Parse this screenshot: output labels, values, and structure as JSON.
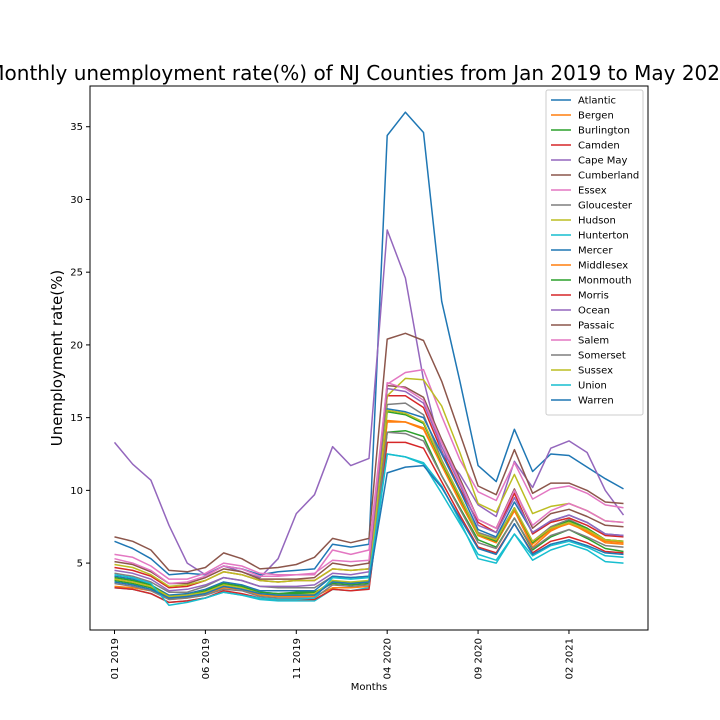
{
  "chart_data": {
    "type": "line",
    "title": "Monthly unemployment rate(%) of NJ Counties from Jan 2019 to May 2021",
    "xlabel": "Months",
    "ylabel": "Unemployment rate(%)",
    "x": [
      "01 2019",
      "02 2019",
      "03 2019",
      "04 2019",
      "05 2019",
      "06 2019",
      "07 2019",
      "08 2019",
      "09 2019",
      "10 2019",
      "11 2019",
      "12 2019",
      "01 2020",
      "02 2020",
      "03 2020",
      "04 2020",
      "05 2020",
      "06 2020",
      "07 2020",
      "08 2020",
      "09 2020",
      "10 2020",
      "11 2020",
      "12 2020",
      "01 2021",
      "02 2021",
      "03 2021",
      "04 2021",
      "05 2021"
    ],
    "xticks": [
      "01 2019",
      "06 2019",
      "11 2019",
      "04 2020",
      "09 2020",
      "02 2021"
    ],
    "yticks": [
      5,
      10,
      15,
      20,
      25,
      30,
      35
    ],
    "ylim": [
      0.4,
      37.8
    ],
    "legend_position": "top-right",
    "grid": false,
    "series": [
      {
        "name": "Atlantic",
        "color": "#1f77b4",
        "values": [
          6.5,
          6.0,
          5.3,
          4.2,
          4.3,
          4.2,
          4.8,
          4.6,
          4.2,
          4.4,
          4.5,
          4.6,
          6.3,
          6.1,
          6.3,
          34.4,
          36.0,
          34.6,
          23.0,
          17.5,
          11.7,
          10.6,
          14.2,
          11.3,
          12.5,
          12.4,
          11.6,
          10.8,
          10.1
        ]
      },
      {
        "name": "Bergen",
        "color": "#ff7f0e",
        "values": [
          3.4,
          3.3,
          3.1,
          2.5,
          2.6,
          2.8,
          3.3,
          3.2,
          2.8,
          2.7,
          2.7,
          2.7,
          3.3,
          3.3,
          3.4,
          14.7,
          14.7,
          14.3,
          11.7,
          9.2,
          6.9,
          6.4,
          8.6,
          6.1,
          7.2,
          7.8,
          7.1,
          6.4,
          6.3
        ]
      },
      {
        "name": "Burlington",
        "color": "#2ca02c",
        "values": [
          3.8,
          3.6,
          3.3,
          2.6,
          2.7,
          3.0,
          3.6,
          3.4,
          3.0,
          2.9,
          3.0,
          3.0,
          3.6,
          3.5,
          3.6,
          14.0,
          14.1,
          13.7,
          11.0,
          8.8,
          6.6,
          6.1,
          8.1,
          5.9,
          6.8,
          7.3,
          6.7,
          6.0,
          5.8
        ]
      },
      {
        "name": "Camden",
        "color": "#d62728",
        "values": [
          4.7,
          4.5,
          4.1,
          3.3,
          3.4,
          3.8,
          4.4,
          4.2,
          3.8,
          3.7,
          3.8,
          3.8,
          4.6,
          4.5,
          4.6,
          16.5,
          16.5,
          15.7,
          12.7,
          10.1,
          7.8,
          7.1,
          9.8,
          7.0,
          7.8,
          8.1,
          7.6,
          6.9,
          6.8
        ]
      },
      {
        "name": "Cape May",
        "color": "#9467bd",
        "values": [
          13.3,
          11.8,
          10.7,
          7.6,
          5.0,
          4.2,
          4.8,
          4.4,
          4.0,
          5.3,
          8.4,
          9.7,
          13.0,
          11.7,
          12.2,
          27.9,
          24.6,
          17.6,
          12.6,
          11.1,
          9.0,
          8.2,
          12.0,
          10.2,
          12.9,
          13.4,
          12.6,
          10.0,
          8.3
        ]
      },
      {
        "name": "Cumberland",
        "color": "#8c564b",
        "values": [
          6.8,
          6.5,
          5.9,
          4.5,
          4.4,
          4.7,
          5.7,
          5.3,
          4.6,
          4.7,
          4.9,
          5.4,
          6.7,
          6.4,
          6.7,
          20.4,
          20.8,
          20.3,
          17.5,
          13.9,
          10.3,
          9.7,
          12.8,
          9.8,
          10.5,
          10.5,
          10.0,
          9.2,
          9.1
        ]
      },
      {
        "name": "Essex",
        "color": "#e377c2",
        "values": [
          5.6,
          5.4,
          4.8,
          3.9,
          3.9,
          4.3,
          5.0,
          4.8,
          4.3,
          4.2,
          4.2,
          4.2,
          5.9,
          5.6,
          5.9,
          17.3,
          18.1,
          18.3,
          15.1,
          12.1,
          9.9,
          9.3,
          11.9,
          9.4,
          10.1,
          10.3,
          9.8,
          9.0,
          8.8
        ]
      },
      {
        "name": "Gloucester",
        "color": "#7f7f7f",
        "values": [
          4.3,
          4.1,
          3.7,
          3.0,
          3.0,
          3.4,
          4.0,
          3.8,
          3.4,
          3.3,
          3.3,
          3.3,
          4.1,
          4.0,
          4.1,
          15.9,
          16.0,
          15.2,
          12.1,
          9.6,
          7.1,
          6.7,
          8.8,
          6.5,
          7.5,
          8.0,
          7.4,
          6.6,
          6.5
        ]
      },
      {
        "name": "Hudson",
        "color": "#bcbd22",
        "values": [
          4.9,
          4.7,
          4.2,
          3.4,
          3.5,
          3.8,
          4.4,
          4.2,
          3.8,
          3.7,
          3.8,
          3.8,
          4.6,
          4.5,
          4.6,
          16.5,
          17.7,
          17.6,
          15.8,
          12.6,
          9.1,
          8.5,
          11.1,
          8.4,
          8.9,
          9.1,
          8.6,
          7.9,
          7.8
        ]
      },
      {
        "name": "Hunterton",
        "color": "#17becf",
        "values": [
          3.3,
          3.2,
          2.9,
          2.3,
          2.4,
          2.6,
          3.0,
          2.8,
          2.5,
          2.4,
          2.4,
          2.4,
          3.2,
          3.1,
          3.3,
          12.5,
          12.3,
          11.8,
          9.8,
          7.7,
          5.6,
          5.2,
          7.0,
          5.5,
          6.2,
          6.5,
          6.1,
          5.5,
          5.4
        ]
      },
      {
        "name": "Mercer",
        "color": "#1f77b4",
        "values": [
          4.1,
          3.9,
          3.5,
          2.8,
          2.9,
          3.2,
          3.7,
          3.5,
          3.1,
          3.1,
          3.1,
          3.1,
          4.1,
          4.0,
          4.1,
          15.6,
          15.4,
          15.0,
          12.5,
          10.0,
          7.3,
          6.8,
          9.2,
          7.1,
          7.9,
          8.3,
          7.8,
          7.0,
          6.9
        ]
      },
      {
        "name": "Middlesex",
        "color": "#ff7f0e",
        "values": [
          3.9,
          3.7,
          3.4,
          2.7,
          2.8,
          3.0,
          3.5,
          3.3,
          2.9,
          2.8,
          2.8,
          2.8,
          3.7,
          3.6,
          3.7,
          14.8,
          14.7,
          14.2,
          11.7,
          9.3,
          6.9,
          6.4,
          8.6,
          6.3,
          7.3,
          7.7,
          7.2,
          6.5,
          6.4
        ]
      },
      {
        "name": "Monmouth",
        "color": "#2ca02c",
        "values": [
          4.0,
          3.8,
          3.5,
          2.7,
          2.8,
          3.1,
          3.6,
          3.4,
          3.0,
          2.9,
          2.9,
          2.9,
          3.8,
          3.6,
          3.8,
          15.4,
          15.2,
          14.6,
          11.9,
          9.5,
          7.0,
          6.5,
          8.8,
          6.4,
          7.4,
          7.9,
          7.4,
          6.6,
          6.5
        ]
      },
      {
        "name": "Morris",
        "color": "#d62728",
        "values": [
          3.3,
          3.2,
          2.9,
          2.3,
          2.4,
          2.6,
          3.1,
          2.9,
          2.6,
          2.5,
          2.5,
          2.5,
          3.2,
          3.1,
          3.2,
          13.3,
          13.3,
          12.9,
          10.6,
          8.3,
          6.1,
          5.7,
          7.7,
          5.7,
          6.5,
          6.8,
          6.4,
          5.8,
          5.7
        ]
      },
      {
        "name": "Ocean",
        "color": "#9467bd",
        "values": [
          4.5,
          4.3,
          3.9,
          3.1,
          3.2,
          3.5,
          4.0,
          3.8,
          3.4,
          3.4,
          3.4,
          3.5,
          4.3,
          4.2,
          4.4,
          17.0,
          16.8,
          16.0,
          13.0,
          10.4,
          7.6,
          7.1,
          9.5,
          7.1,
          7.9,
          8.3,
          7.8,
          7.0,
          6.9
        ]
      },
      {
        "name": "Passaic",
        "color": "#8c564b",
        "values": [
          5.1,
          4.9,
          4.4,
          3.6,
          3.6,
          4.0,
          4.6,
          4.4,
          3.9,
          3.9,
          3.9,
          4.0,
          5.0,
          4.8,
          5.0,
          17.2,
          17.1,
          16.4,
          13.5,
          10.8,
          8.0,
          7.4,
          10.1,
          7.4,
          8.4,
          8.7,
          8.2,
          7.6,
          7.5
        ]
      },
      {
        "name": "Salem",
        "color": "#e377c2",
        "values": [
          5.3,
          5.0,
          4.5,
          3.6,
          3.7,
          4.1,
          4.8,
          4.6,
          4.1,
          4.1,
          4.2,
          4.3,
          5.2,
          5.1,
          5.2,
          17.4,
          17.0,
          16.2,
          13.3,
          10.6,
          8.0,
          7.4,
          10.0,
          7.6,
          8.6,
          9.1,
          8.6,
          7.9,
          7.8
        ]
      },
      {
        "name": "Somerset",
        "color": "#7f7f7f",
        "values": [
          3.6,
          3.4,
          3.1,
          2.5,
          2.6,
          2.8,
          3.2,
          3.1,
          2.7,
          2.6,
          2.6,
          2.6,
          3.5,
          3.4,
          3.5,
          14.0,
          13.9,
          13.4,
          11.0,
          8.7,
          6.4,
          6.0,
          8.1,
          6.0,
          6.9,
          7.3,
          6.8,
          6.2,
          6.1
        ]
      },
      {
        "name": "Sussex",
        "color": "#bcbd22",
        "values": [
          3.9,
          3.7,
          3.4,
          2.7,
          2.8,
          3.0,
          3.5,
          3.3,
          2.9,
          2.8,
          2.8,
          2.9,
          3.8,
          3.7,
          3.8,
          15.5,
          15.3,
          14.7,
          12.0,
          9.6,
          7.0,
          6.6,
          8.8,
          6.5,
          7.4,
          7.8,
          7.3,
          6.6,
          6.5
        ]
      },
      {
        "name": "Union",
        "color": "#17becf",
        "values": [
          4.2,
          4.0,
          3.6,
          2.1,
          2.3,
          2.6,
          3.0,
          2.8,
          2.6,
          2.5,
          2.5,
          2.6,
          4.0,
          3.9,
          4.0,
          12.5,
          12.3,
          11.9,
          10.3,
          7.9,
          5.3,
          5.0,
          7.0,
          5.2,
          5.9,
          6.3,
          5.9,
          5.1,
          5.0
        ]
      },
      {
        "name": "Warren",
        "color": "#1f77b4",
        "values": [
          3.7,
          3.5,
          3.2,
          2.6,
          2.7,
          2.9,
          3.4,
          3.2,
          2.9,
          2.8,
          2.8,
          2.8,
          3.7,
          3.6,
          3.7,
          11.2,
          11.6,
          11.7,
          10.2,
          8.1,
          6.0,
          5.6,
          7.7,
          5.6,
          6.3,
          6.6,
          6.2,
          5.7,
          5.6
        ]
      }
    ]
  }
}
